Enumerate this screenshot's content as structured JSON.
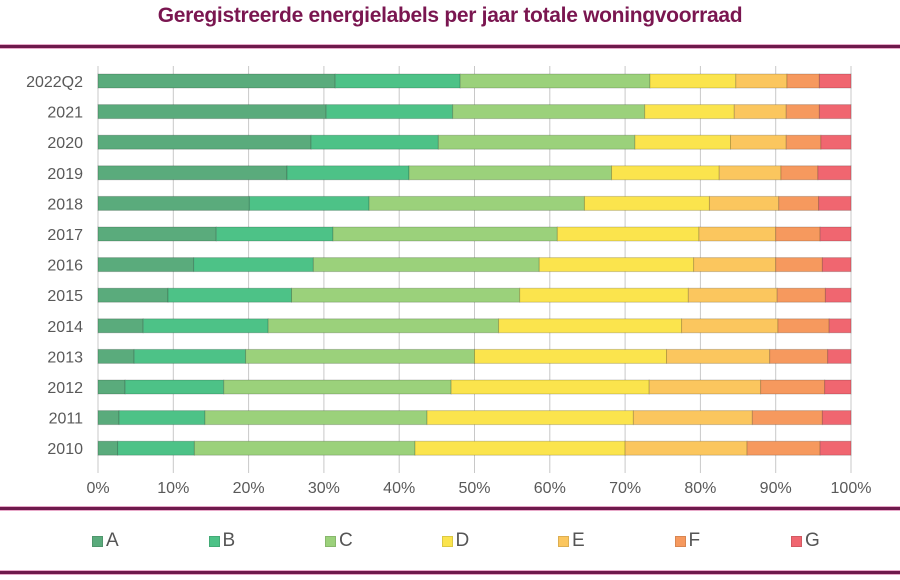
{
  "chart_data": {
    "type": "bar",
    "orientation": "horizontal",
    "stacked": "percent",
    "title": "Geregistreerde energielabels per jaar totale woningvoorraad",
    "xlabel": "",
    "ylabel": "",
    "xlim": [
      0,
      100
    ],
    "x_ticks": [
      "0%",
      "10%",
      "20%",
      "30%",
      "40%",
      "50%",
      "60%",
      "70%",
      "80%",
      "90%",
      "100%"
    ],
    "grid": true,
    "legend_position": "bottom",
    "categories": [
      "2022Q2",
      "2021",
      "2020",
      "2019",
      "2018",
      "2017",
      "2016",
      "2015",
      "2014",
      "2013",
      "2012",
      "2011",
      "2010"
    ],
    "series": [
      {
        "name": "A",
        "color": "#5aab7c",
        "values": [
          31.5,
          30.3,
          28.3,
          25.1,
          20.1,
          15.7,
          12.7,
          9.3,
          6.0,
          4.8,
          3.6,
          2.8,
          2.6
        ]
      },
      {
        "name": "B",
        "color": "#4dc287",
        "values": [
          16.6,
          16.8,
          16.9,
          16.2,
          15.9,
          15.5,
          15.9,
          16.4,
          16.6,
          14.8,
          13.1,
          11.4,
          10.2
        ]
      },
      {
        "name": "C",
        "color": "#9bd17b",
        "values": [
          25.2,
          25.5,
          26.1,
          26.9,
          28.6,
          29.8,
          30.0,
          30.3,
          30.6,
          30.4,
          30.2,
          29.5,
          29.3
        ]
      },
      {
        "name": "D",
        "color": "#fbe44d",
        "values": [
          11.4,
          11.9,
          12.7,
          14.3,
          16.6,
          18.8,
          20.5,
          22.4,
          24.3,
          25.5,
          26.3,
          27.4,
          27.9
        ]
      },
      {
        "name": "E",
        "color": "#fbc65e",
        "values": [
          6.8,
          6.9,
          7.4,
          8.2,
          9.2,
          10.2,
          10.9,
          11.8,
          12.8,
          13.7,
          14.8,
          15.8,
          16.2
        ]
      },
      {
        "name": "F",
        "color": "#f6995e",
        "values": [
          4.3,
          4.4,
          4.6,
          4.9,
          5.3,
          5.9,
          6.2,
          6.4,
          6.8,
          7.7,
          8.5,
          9.3,
          9.7
        ]
      },
      {
        "name": "G",
        "color": "#f06670",
        "values": [
          4.2,
          4.2,
          4.0,
          4.4,
          4.3,
          4.1,
          3.8,
          3.4,
          2.9,
          3.1,
          3.5,
          3.8,
          4.1
        ]
      }
    ]
  },
  "colors": {
    "title": "#7a1650",
    "rule": "#6e1a4c",
    "axis_text": "#595959",
    "grid": "#c8c8c8"
  }
}
